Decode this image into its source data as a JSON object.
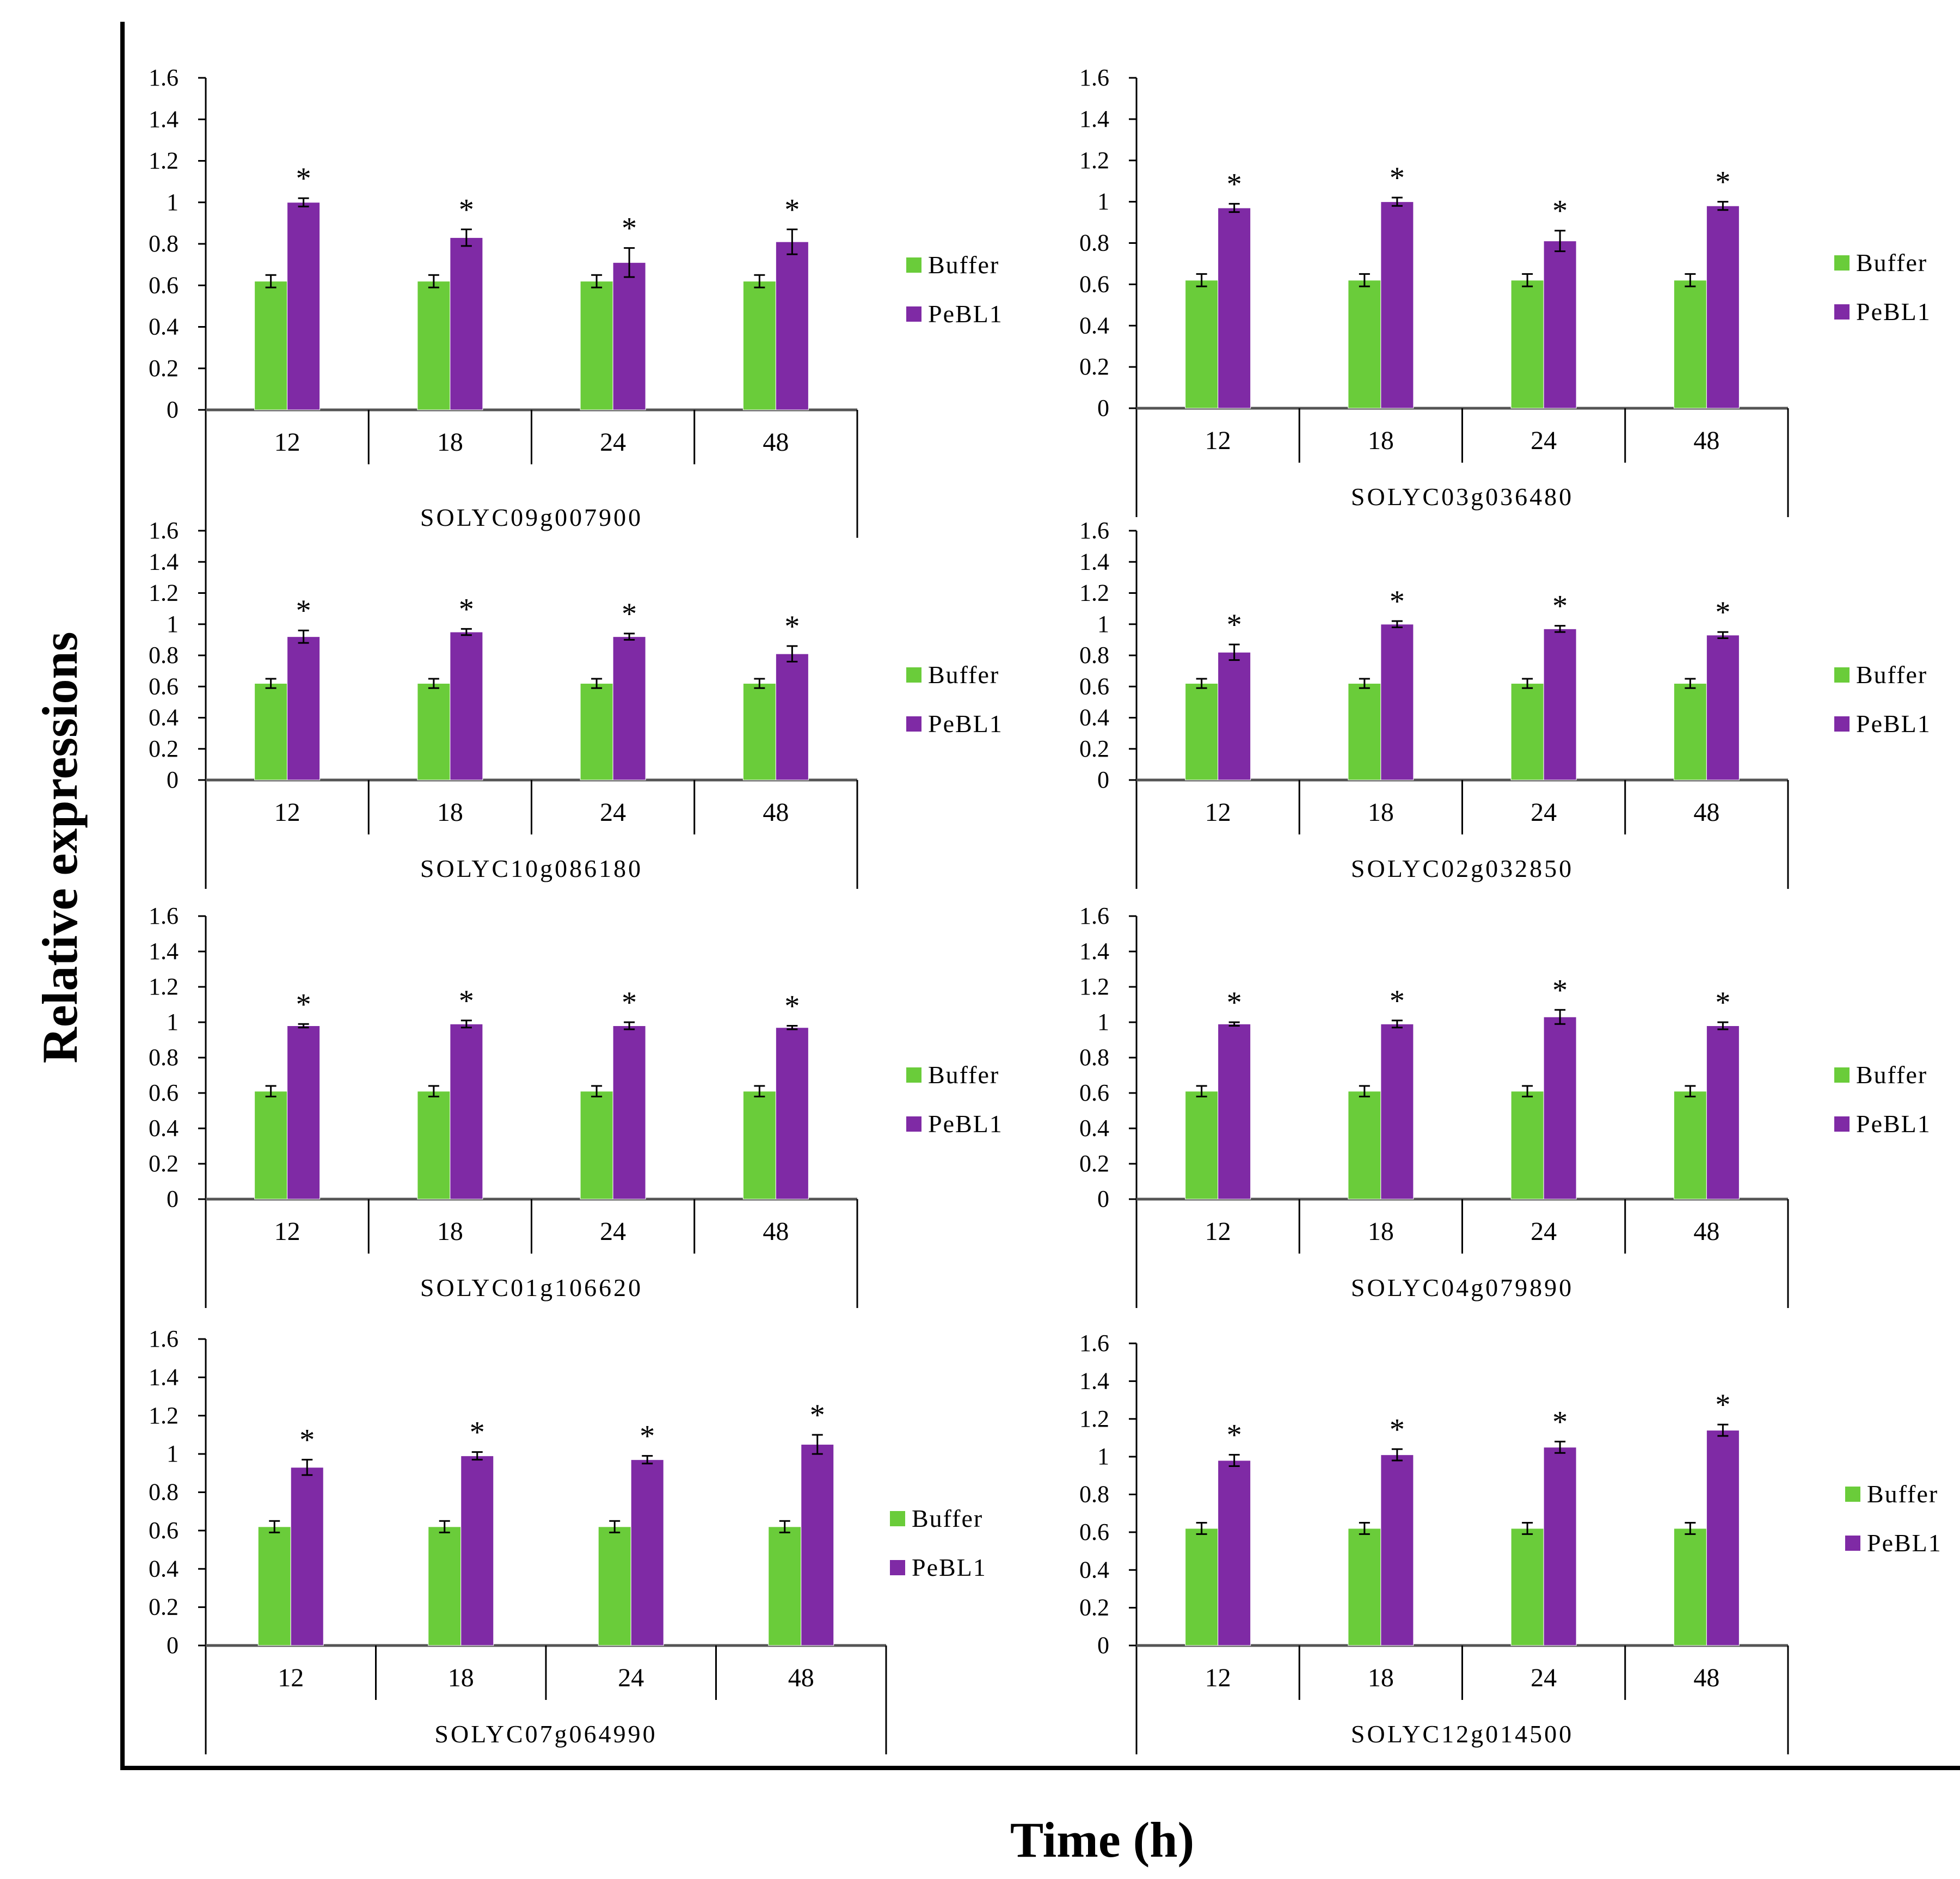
{
  "figure": {
    "y_axis_title": "Relative expressions",
    "x_axis_title": "Time (h)",
    "colors": {
      "buffer": "#6acc3a",
      "pebl1": "#7f2aa5",
      "axis": "#000000"
    }
  },
  "chart_data": [
    {
      "type": "bar",
      "gene": "SOLYC09g007900",
      "categories": [
        "12",
        "18",
        "24",
        "48"
      ],
      "ylim": [
        0,
        1.6
      ],
      "yticks": [
        "0",
        "0.2",
        "0.4",
        "0.6",
        "0.8",
        "1",
        "1.2",
        "1.4",
        "1.6"
      ],
      "series": [
        {
          "name": "Buffer",
          "values": [
            0.62,
            0.62,
            0.62,
            0.62
          ],
          "errors": [
            0.03,
            0.03,
            0.03,
            0.03
          ]
        },
        {
          "name": "PeBL1",
          "values": [
            1.0,
            0.83,
            0.71,
            0.81
          ],
          "errors": [
            0.02,
            0.04,
            0.07,
            0.06
          ]
        }
      ],
      "significance": [
        "*",
        "*",
        "*",
        "*"
      ]
    },
    {
      "type": "bar",
      "gene": "SOLYC03g036480",
      "categories": [
        "12",
        "18",
        "24",
        "48"
      ],
      "ylim": [
        0,
        1.6
      ],
      "yticks": [
        "0",
        "0.2",
        "0.4",
        "0.6",
        "0.8",
        "1",
        "1.2",
        "1.4",
        "1.6"
      ],
      "series": [
        {
          "name": "Buffer",
          "values": [
            0.62,
            0.62,
            0.62,
            0.62
          ],
          "errors": [
            0.03,
            0.03,
            0.03,
            0.03
          ]
        },
        {
          "name": "PeBL1",
          "values": [
            0.97,
            1.0,
            0.81,
            0.98
          ],
          "errors": [
            0.02,
            0.02,
            0.05,
            0.02
          ]
        }
      ],
      "significance": [
        "*",
        "*",
        "*",
        "*"
      ]
    },
    {
      "type": "bar",
      "gene": "SOLYC10g086180",
      "categories": [
        "12",
        "18",
        "24",
        "48"
      ],
      "ylim": [
        0,
        1.6
      ],
      "yticks": [
        "0",
        "0.2",
        "0.4",
        "0.6",
        "0.8",
        "1",
        "1.2",
        "1.4",
        "1.6"
      ],
      "series": [
        {
          "name": "Buffer",
          "values": [
            0.62,
            0.62,
            0.62,
            0.62
          ],
          "errors": [
            0.03,
            0.03,
            0.03,
            0.03
          ]
        },
        {
          "name": "PeBL1",
          "values": [
            0.92,
            0.95,
            0.92,
            0.81
          ],
          "errors": [
            0.04,
            0.02,
            0.02,
            0.05
          ]
        }
      ],
      "significance": [
        "*",
        "*",
        "*",
        "*"
      ]
    },
    {
      "type": "bar",
      "gene": "SOLYC02g032850",
      "categories": [
        "12",
        "18",
        "24",
        "48"
      ],
      "ylim": [
        0,
        1.6
      ],
      "yticks": [
        "0",
        "0.2",
        "0.4",
        "0.6",
        "0.8",
        "1",
        "1.2",
        "1.4",
        "1.6"
      ],
      "series": [
        {
          "name": "Buffer",
          "values": [
            0.62,
            0.62,
            0.62,
            0.62
          ],
          "errors": [
            0.03,
            0.03,
            0.03,
            0.03
          ]
        },
        {
          "name": "PeBL1",
          "values": [
            0.82,
            1.0,
            0.97,
            0.93
          ],
          "errors": [
            0.05,
            0.02,
            0.02,
            0.02
          ]
        }
      ],
      "significance": [
        "*",
        "*",
        "*",
        "*"
      ]
    },
    {
      "type": "bar",
      "gene": "SOLYC01g106620",
      "categories": [
        "12",
        "18",
        "24",
        "48"
      ],
      "ylim": [
        0,
        1.6
      ],
      "yticks": [
        "0",
        "0.2",
        "0.4",
        "0.6",
        "0.8",
        "1",
        "1.2",
        "1.4",
        "1.6"
      ],
      "series": [
        {
          "name": "Buffer",
          "values": [
            0.61,
            0.61,
            0.61,
            0.61
          ],
          "errors": [
            0.03,
            0.03,
            0.03,
            0.03
          ]
        },
        {
          "name": "PeBL1",
          "values": [
            0.98,
            0.99,
            0.98,
            0.97
          ],
          "errors": [
            0.01,
            0.02,
            0.02,
            0.01
          ]
        }
      ],
      "significance": [
        "*",
        "*",
        "*",
        "*"
      ]
    },
    {
      "type": "bar",
      "gene": "SOLYC04g079890",
      "categories": [
        "12",
        "18",
        "24",
        "48"
      ],
      "ylim": [
        0,
        1.6
      ],
      "yticks": [
        "0",
        "0.2",
        "0.4",
        "0.6",
        "0.8",
        "1",
        "1.2",
        "1.4",
        "1.6"
      ],
      "series": [
        {
          "name": "Buffer",
          "values": [
            0.61,
            0.61,
            0.61,
            0.61
          ],
          "errors": [
            0.03,
            0.03,
            0.03,
            0.03
          ]
        },
        {
          "name": "PeBL1",
          "values": [
            0.99,
            0.99,
            1.03,
            0.98
          ],
          "errors": [
            0.01,
            0.02,
            0.04,
            0.02
          ]
        }
      ],
      "significance": [
        "*",
        "*",
        "*",
        "*"
      ]
    },
    {
      "type": "bar",
      "gene": "SOLYC07g064990",
      "categories": [
        "12",
        "18",
        "24",
        "48"
      ],
      "ylim": [
        0,
        1.6
      ],
      "yticks": [
        "0",
        "0.2",
        "0.4",
        "0.6",
        "0.8",
        "1",
        "1.2",
        "1.4",
        "1.6"
      ],
      "series": [
        {
          "name": "Buffer",
          "values": [
            0.62,
            0.62,
            0.62,
            0.62
          ],
          "errors": [
            0.03,
            0.03,
            0.03,
            0.03
          ]
        },
        {
          "name": "PeBL1",
          "values": [
            0.93,
            0.99,
            0.97,
            1.05
          ],
          "errors": [
            0.04,
            0.02,
            0.02,
            0.05
          ]
        }
      ],
      "significance": [
        "*",
        "*",
        "*",
        "*"
      ]
    },
    {
      "type": "bar",
      "gene": "SOLYC12g014500",
      "categories": [
        "12",
        "18",
        "24",
        "48"
      ],
      "ylim": [
        0,
        1.6
      ],
      "yticks": [
        "0",
        "0.2",
        "0.4",
        "0.6",
        "0.8",
        "1",
        "1.2",
        "1.4",
        "1.6"
      ],
      "series": [
        {
          "name": "Buffer",
          "values": [
            0.62,
            0.62,
            0.62,
            0.62
          ],
          "errors": [
            0.03,
            0.03,
            0.03,
            0.03
          ]
        },
        {
          "name": "PeBL1",
          "values": [
            0.98,
            1.01,
            1.05,
            1.14
          ],
          "errors": [
            0.03,
            0.03,
            0.03,
            0.03
          ]
        }
      ],
      "significance": [
        "*",
        "*",
        "*",
        "*"
      ]
    }
  ]
}
